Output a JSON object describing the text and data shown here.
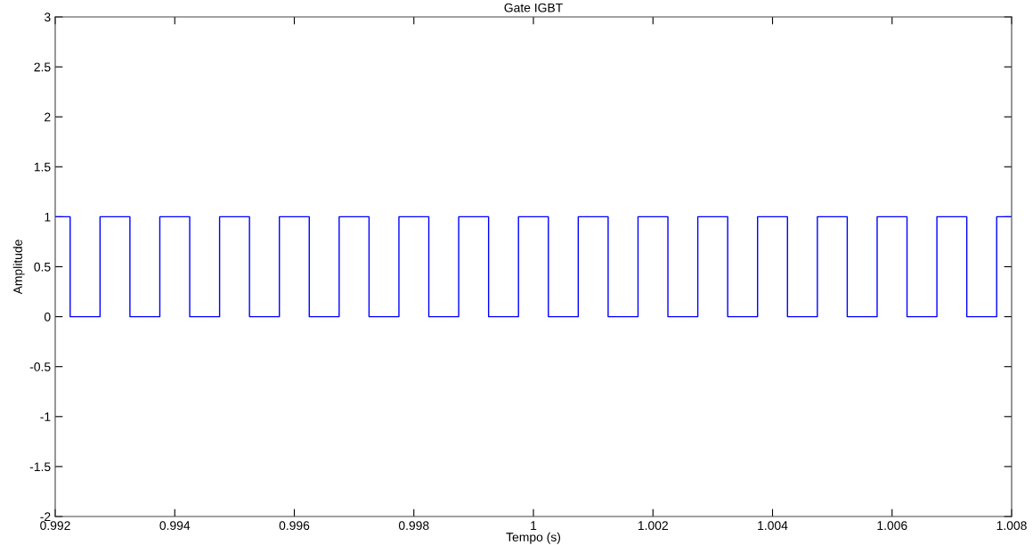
{
  "chart_data": {
    "type": "step",
    "title": "Gate IGBT",
    "xlabel": "Tempo (s)",
    "ylabel": "Amplitude",
    "x": [
      0.992,
      0.99225,
      0.99275,
      0.99325,
      0.99375,
      0.99425,
      0.99475,
      0.99525,
      0.99575,
      0.99625,
      0.99675,
      0.99725,
      0.99775,
      0.99825,
      0.99875,
      0.99925,
      0.99975,
      1.00025,
      1.00075,
      1.00125,
      1.00175,
      1.00225,
      1.00275,
      1.00325,
      1.00375,
      1.00425,
      1.00475,
      1.00525,
      1.00575,
      1.00625,
      1.00675,
      1.00725,
      1.00775,
      1.008
    ],
    "series": [
      {
        "color": "#0000ff",
        "values": [
          1,
          0,
          1,
          0,
          1,
          0,
          1,
          0,
          1,
          0,
          1,
          0,
          1,
          0,
          1,
          0,
          1,
          0,
          1,
          0,
          1,
          0,
          1,
          0,
          1,
          0,
          1,
          0,
          1,
          0,
          1,
          0,
          1,
          1
        ]
      }
    ],
    "xlim": [
      0.992,
      1.008
    ],
    "xticks": [
      0.992,
      0.994,
      0.996,
      0.998,
      1,
      1.002,
      1.004,
      1.006,
      1.008
    ],
    "ylim": [
      -2,
      3
    ],
    "yticks": [
      -2,
      -1.5,
      -1,
      -0.5,
      0,
      0.5,
      1,
      1.5,
      2,
      2.5,
      3
    ],
    "grid": false
  }
}
